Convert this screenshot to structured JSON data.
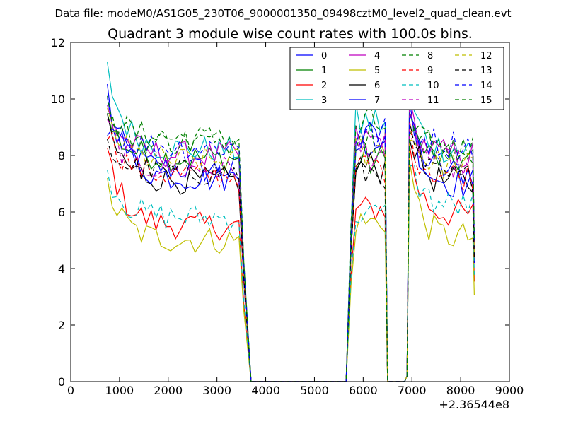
{
  "figure": {
    "suptitle": "Data file: modeM0/AS1G05_230T06_9000001350_09498cztM0_level2_quad_clean.evt",
    "title": "Quadrant 3 module wise count rates with 100.0s bins.",
    "x_offset_label": "+2.36544e8"
  },
  "chart_data": {
    "type": "line",
    "xlim": [
      0,
      9000
    ],
    "ylim": [
      0,
      12
    ],
    "x_ticks": [
      0,
      1000,
      2000,
      3000,
      4000,
      5000,
      6000,
      7000,
      8000,
      9000
    ],
    "y_ticks": [
      0,
      2,
      4,
      6,
      8,
      10,
      12
    ],
    "x_tick_labels": [
      "0",
      "1000",
      "2000",
      "3000",
      "4000",
      "5000",
      "6000",
      "7000",
      "8000",
      "9000"
    ],
    "y_tick_labels": [
      "0",
      "2",
      "4",
      "6",
      "8",
      "10",
      "12"
    ],
    "grid": false,
    "legend_position": "top-right",
    "legend_columns": 4,
    "segments": [
      {
        "x_start": 750,
        "x_end": 3450,
        "step": 100
      },
      {
        "x_start": 5650,
        "x_end": 6450,
        "step": 100
      },
      {
        "x_start": 6850,
        "x_end": 8250,
        "step": 100
      }
    ],
    "baseline_points": [
      [
        3700,
        0
      ],
      [
        5650,
        0
      ],
      [
        6500,
        0
      ],
      [
        6850,
        0
      ]
    ],
    "series": [
      {
        "name": "0",
        "color": "#0000ff",
        "dash": "solid",
        "seg1_start": 9.9,
        "seg1_mean": 7.5,
        "seg2_peak": 9.2,
        "seg3_start": 9.5,
        "seg3_mean": 7.4
      },
      {
        "name": "1",
        "color": "#008000",
        "dash": "solid",
        "seg1_start": 9.3,
        "seg1_mean": 7.9,
        "seg2_peak": 8.4,
        "seg3_start": 9.3,
        "seg3_mean": 7.8
      },
      {
        "name": "2",
        "color": "#ff0000",
        "dash": "solid",
        "seg1_start": 8.2,
        "seg1_mean": 5.5,
        "seg2_peak": 6.6,
        "seg3_start": 8.2,
        "seg3_mean": 5.9
      },
      {
        "name": "3",
        "color": "#00bfbf",
        "dash": "solid",
        "seg1_start": 11.0,
        "seg1_mean": 8.2,
        "seg2_peak": 9.9,
        "seg3_start": 10.3,
        "seg3_mean": 8.2
      },
      {
        "name": "4",
        "color": "#bf00bf",
        "dash": "solid",
        "seg1_start": 9.7,
        "seg1_mean": 8.0,
        "seg2_peak": 9.2,
        "seg3_start": 9.6,
        "seg3_mean": 8.0
      },
      {
        "name": "5",
        "color": "#bfbf00",
        "dash": "solid",
        "seg1_start": 6.9,
        "seg1_mean": 5.0,
        "seg2_peak": 6.1,
        "seg3_start": 7.7,
        "seg3_mean": 5.1
      },
      {
        "name": "6",
        "color": "#000000",
        "dash": "solid",
        "seg1_start": 9.0,
        "seg1_mean": 7.1,
        "seg2_peak": 8.2,
        "seg3_start": 9.0,
        "seg3_mean": 7.0
      },
      {
        "name": "7",
        "color": "#0000ff",
        "dash": "solid",
        "seg1_start": 10.3,
        "seg1_mean": 7.2,
        "seg2_peak": 9.4,
        "seg3_start": 9.8,
        "seg3_mean": 7.0
      },
      {
        "name": "8",
        "color": "#008000",
        "dash": "dashed",
        "seg1_start": 9.8,
        "seg1_mean": 8.6,
        "seg2_peak": 9.8,
        "seg3_start": 9.2,
        "seg3_mean": 8.2
      },
      {
        "name": "9",
        "color": "#ff0000",
        "dash": "dashed",
        "seg1_start": 8.9,
        "seg1_mean": 7.3,
        "seg2_peak": 8.2,
        "seg3_start": 8.8,
        "seg3_mean": 7.3
      },
      {
        "name": "10",
        "color": "#00bfbf",
        "dash": "dashed",
        "seg1_start": 7.4,
        "seg1_mean": 5.8,
        "seg2_peak": 6.4,
        "seg3_start": 8.0,
        "seg3_mean": 6.2
      },
      {
        "name": "11",
        "color": "#bf00bf",
        "dash": "dashed",
        "seg1_start": 9.1,
        "seg1_mean": 7.5,
        "seg2_peak": 8.8,
        "seg3_start": 9.2,
        "seg3_mean": 7.7
      },
      {
        "name": "12",
        "color": "#bfbf00",
        "dash": "dashed",
        "seg1_start": 9.3,
        "seg1_mean": 7.8,
        "seg2_peak": 8.9,
        "seg3_start": 9.0,
        "seg3_mean": 7.6
      },
      {
        "name": "13",
        "color": "#000000",
        "dash": "dashed",
        "seg1_start": 8.3,
        "seg1_mean": 7.4,
        "seg2_peak": 8.0,
        "seg3_start": 8.7,
        "seg3_mean": 7.2
      },
      {
        "name": "14",
        "color": "#0000ff",
        "dash": "dashed",
        "seg1_start": 9.2,
        "seg1_mean": 8.3,
        "seg2_peak": 9.4,
        "seg3_start": 9.4,
        "seg3_mean": 8.4
      },
      {
        "name": "15",
        "color": "#008000",
        "dash": "dashed",
        "seg1_start": 9.4,
        "seg1_mean": 8.5,
        "seg2_peak": 9.5,
        "seg3_start": 9.2,
        "seg3_mean": 8.3
      }
    ]
  }
}
